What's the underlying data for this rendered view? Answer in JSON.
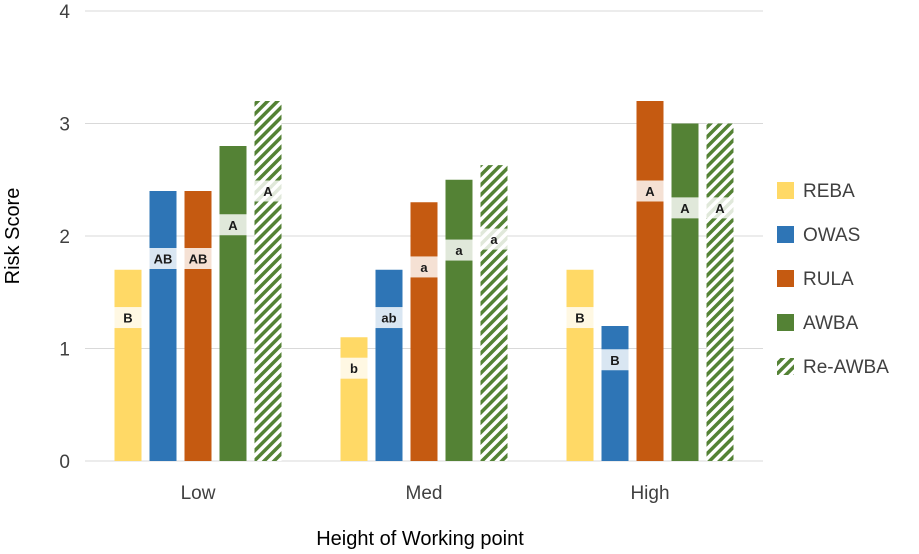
{
  "chart_data": {
    "type": "bar",
    "title": "",
    "xlabel": "Height of Working point",
    "ylabel": "Risk Score",
    "ylim": [
      0,
      4
    ],
    "yticks": [
      "0",
      "1",
      "2",
      "3",
      "4"
    ],
    "grid": true,
    "legend": "right",
    "categories": [
      "Low",
      "Med",
      "High"
    ],
    "series": [
      {
        "name": "REBA",
        "color": "#FFD966",
        "pattern": "solid",
        "values": [
          1.7,
          1.1,
          1.7
        ],
        "labels": [
          "B",
          "b",
          "B"
        ]
      },
      {
        "name": "OWAS",
        "color": "#2E75B6",
        "pattern": "solid",
        "values": [
          2.4,
          1.7,
          1.2
        ],
        "labels": [
          "AB",
          "ab",
          "B"
        ]
      },
      {
        "name": "RULA",
        "color": "#C55A11",
        "pattern": "solid",
        "values": [
          2.4,
          2.3,
          3.2
        ],
        "labels": [
          "AB",
          "a",
          "A"
        ]
      },
      {
        "name": "AWBA",
        "color": "#548235",
        "pattern": "solid",
        "values": [
          2.8,
          2.5,
          3.0
        ],
        "labels": [
          "A",
          "a",
          "A"
        ]
      },
      {
        "name": "Re-AWBA",
        "color": "#548235",
        "pattern": "hatched",
        "values": [
          3.2,
          2.63,
          3.0
        ],
        "labels": [
          "A",
          "a",
          "A"
        ]
      }
    ]
  }
}
